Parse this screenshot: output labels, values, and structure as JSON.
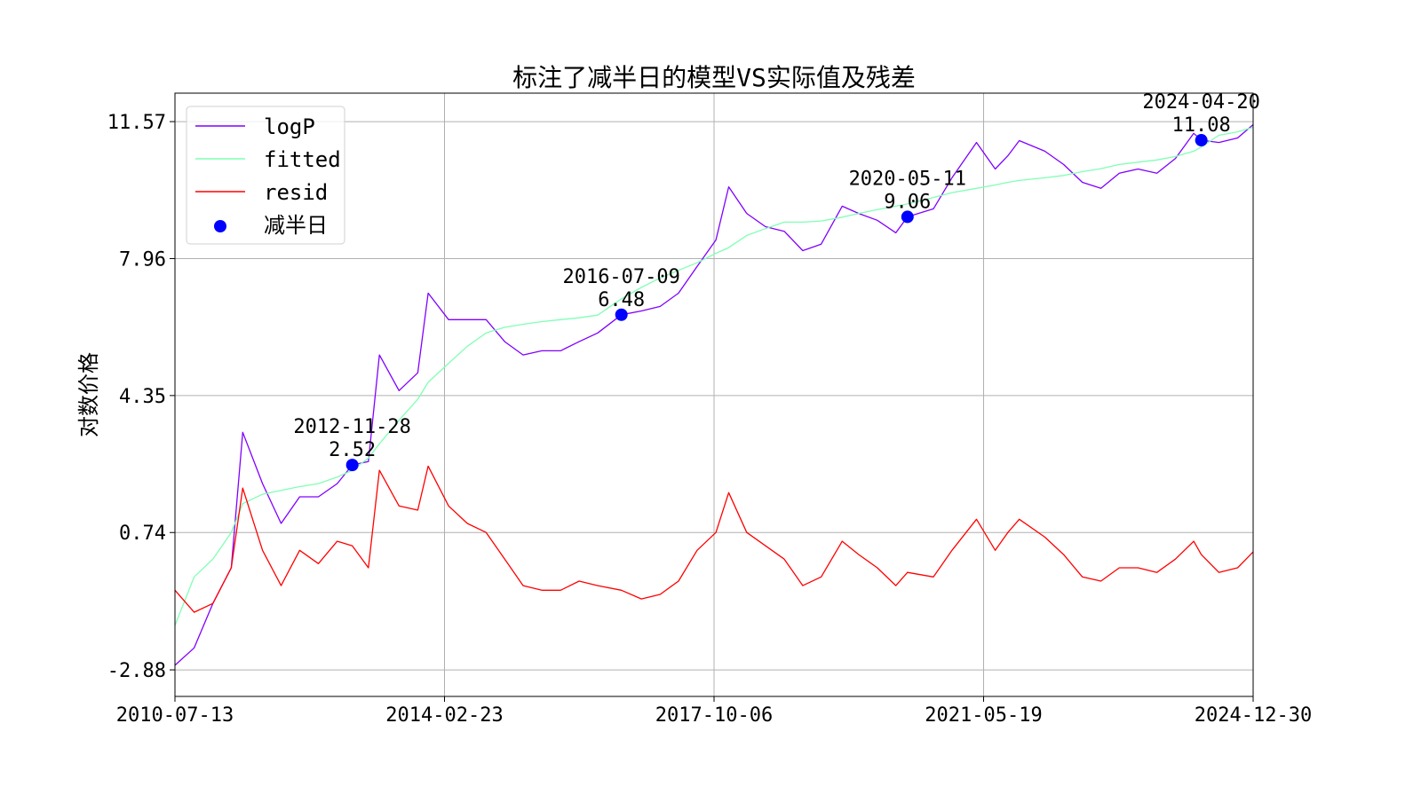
{
  "chart_data": {
    "type": "line",
    "title": "标注了减半日的模型VS实际值及残差",
    "y_label": "对数价格",
    "x": [
      "2010-07-13",
      "2010-10-15",
      "2011-01-15",
      "2011-04-15",
      "2011-06-10",
      "2011-09-15",
      "2011-12-15",
      "2012-03-15",
      "2012-06-15",
      "2012-09-15",
      "2012-11-28",
      "2013-02-15",
      "2013-04-10",
      "2013-07-15",
      "2013-10-15",
      "2013-12-05",
      "2014-03-15",
      "2014-06-15",
      "2014-09-15",
      "2014-12-15",
      "2015-03-15",
      "2015-06-15",
      "2015-09-15",
      "2015-12-15",
      "2016-03-15",
      "2016-07-09",
      "2016-10-15",
      "2017-01-15",
      "2017-04-15",
      "2017-07-15",
      "2017-10-15",
      "2017-12-17",
      "2018-03-15",
      "2018-06-15",
      "2018-09-15",
      "2018-12-15",
      "2019-03-15",
      "2019-06-26",
      "2019-09-15",
      "2019-12-15",
      "2020-03-15",
      "2020-05-11",
      "2020-09-15",
      "2020-12-15",
      "2021-04-14",
      "2021-07-15",
      "2021-09-15",
      "2021-11-10",
      "2022-03-15",
      "2022-06-15",
      "2022-09-15",
      "2022-12-15",
      "2023-03-15",
      "2023-06-15",
      "2023-09-15",
      "2023-12-15",
      "2024-03-14",
      "2024-04-20",
      "2024-07-15",
      "2024-10-15",
      "2024-12-30"
    ],
    "series": [
      {
        "name": "logP",
        "color": "#8000ff",
        "values": [
          -2.76,
          -2.3,
          -1.13,
          -0.19,
          3.38,
          2.03,
          0.98,
          1.68,
          1.68,
          2.03,
          2.52,
          2.61,
          5.42,
          4.48,
          4.95,
          7.05,
          6.35,
          6.35,
          6.35,
          5.77,
          5.42,
          5.53,
          5.53,
          5.77,
          6.0,
          6.48,
          6.58,
          6.7,
          7.05,
          7.75,
          8.45,
          9.85,
          9.15,
          8.8,
          8.68,
          8.17,
          8.34,
          9.34,
          9.15,
          8.97,
          8.64,
          9.06,
          9.27,
          10.09,
          11.02,
          10.32,
          10.67,
          11.07,
          10.79,
          10.44,
          9.97,
          9.81,
          10.21,
          10.32,
          10.21,
          10.6,
          11.26,
          11.08,
          11.02,
          11.14,
          11.49
        ]
      },
      {
        "name": "fitted",
        "color": "#80ffb4",
        "values": [
          -1.71,
          -0.43,
          0.04,
          0.74,
          1.5,
          1.75,
          1.85,
          1.95,
          2.03,
          2.2,
          2.38,
          2.7,
          3.08,
          3.7,
          4.25,
          4.7,
          5.2,
          5.65,
          6.0,
          6.15,
          6.23,
          6.3,
          6.35,
          6.4,
          6.47,
          6.9,
          7.2,
          7.45,
          7.65,
          7.85,
          8.1,
          8.25,
          8.57,
          8.75,
          8.92,
          8.92,
          8.95,
          9.05,
          9.15,
          9.25,
          9.34,
          9.4,
          9.57,
          9.7,
          9.81,
          9.9,
          9.97,
          10.02,
          10.09,
          10.15,
          10.25,
          10.33,
          10.44,
          10.5,
          10.56,
          10.65,
          10.79,
          10.9,
          11.21,
          11.3,
          11.42
        ]
      },
      {
        "name": "resid",
        "color": "#ff0000",
        "values": [
          -0.78,
          -1.36,
          -1.13,
          -0.19,
          1.91,
          0.27,
          -0.66,
          0.27,
          -0.08,
          0.51,
          0.39,
          -0.19,
          2.38,
          1.44,
          1.33,
          2.49,
          1.44,
          0.98,
          0.74,
          0.04,
          -0.66,
          -0.78,
          -0.78,
          -0.54,
          -0.66,
          -0.78,
          -1.01,
          -0.89,
          -0.54,
          0.27,
          0.74,
          1.79,
          0.74,
          0.39,
          0.04,
          -0.66,
          -0.43,
          0.51,
          0.16,
          -0.19,
          -0.66,
          -0.31,
          -0.43,
          0.27,
          1.09,
          0.27,
          0.74,
          1.09,
          0.62,
          0.16,
          -0.43,
          -0.54,
          -0.19,
          -0.19,
          -0.31,
          0.04,
          0.51,
          0.16,
          -0.31,
          -0.19,
          0.23
        ]
      },
      {
        "name": "减半日",
        "color": "#0000ff",
        "kind": "scatter",
        "x": [
          "2012-11-28",
          "2016-07-09",
          "2020-05-11",
          "2024-04-20"
        ],
        "values": [
          2.52,
          6.48,
          9.06,
          11.08
        ]
      }
    ],
    "xlim": [
      "2010-07-13",
      "2024-12-30"
    ],
    "xticks": [
      "2010-07-13",
      "2014-02-23",
      "2017-10-06",
      "2021-05-19",
      "2024-12-30"
    ],
    "ylim": [
      -3.58,
      12.32
    ],
    "yticks": [
      -2.88,
      0.74,
      4.35,
      7.96,
      11.57
    ],
    "grid": true,
    "legend": "upper-left"
  }
}
